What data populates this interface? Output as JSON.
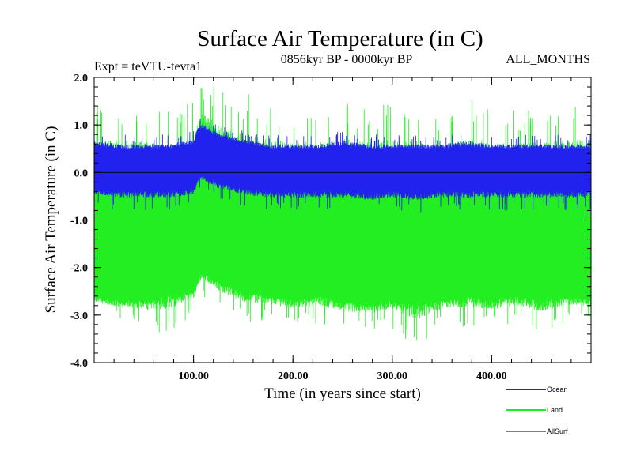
{
  "chart_data": {
    "type": "line",
    "title": "Surface Air Temperature (in C)",
    "subtitle_left": "Expt = teVTU-tevta1",
    "subtitle_center": "0856kyr BP - 0000kyr BP",
    "subtitle_right": "ALL_MONTHS",
    "xlabel": "Time (in years since start)",
    "ylabel": "Surface Air Temperature (in C)",
    "xlim": [
      0,
      500
    ],
    "ylim": [
      -4.0,
      2.0
    ],
    "x_ticks": [
      100,
      200,
      300,
      400
    ],
    "x_tick_labels": [
      "100.00",
      "200.00",
      "300.00",
      "400.00"
    ],
    "y_ticks": [
      2.0,
      1.0,
      0.0,
      -1.0,
      -2.0,
      -3.0,
      -4.0
    ],
    "y_tick_labels": [
      "2.0",
      "1.0",
      "0.0",
      "-1.0",
      "-2.0",
      "-3.0",
      "-4.0"
    ],
    "legend_position": "bottom-right outside",
    "series": [
      {
        "name": "Land",
        "color": "#22ee22",
        "x": [
          0,
          25,
          50,
          75,
          100,
          105,
          110,
          125,
          150,
          175,
          200,
          225,
          250,
          275,
          300,
          325,
          350,
          375,
          400,
          425,
          450,
          475,
          500
        ],
        "max": [
          1.4,
          1.5,
          1.4,
          1.3,
          1.5,
          1.7,
          2.0,
          1.8,
          1.7,
          1.5,
          1.4,
          1.4,
          1.6,
          1.3,
          1.5,
          1.4,
          1.3,
          1.6,
          1.4,
          1.3,
          1.5,
          1.4,
          1.7
        ],
        "high": [
          0.3,
          0.3,
          0.3,
          0.25,
          0.35,
          0.8,
          0.9,
          0.6,
          0.4,
          0.3,
          0.3,
          0.25,
          0.3,
          0.3,
          0.3,
          0.3,
          0.25,
          0.3,
          0.3,
          0.25,
          0.3,
          0.3,
          0.3
        ],
        "low": [
          -2.6,
          -2.7,
          -2.7,
          -2.6,
          -2.5,
          -2.2,
          -2.1,
          -2.3,
          -2.5,
          -2.6,
          -2.7,
          -2.6,
          -2.7,
          -2.8,
          -2.7,
          -2.8,
          -2.7,
          -2.6,
          -2.7,
          -2.6,
          -2.7,
          -2.6,
          -2.7
        ],
        "min": [
          -3.0,
          -3.1,
          -3.3,
          -3.5,
          -3.0,
          -2.6,
          -2.6,
          -2.9,
          -3.2,
          -3.1,
          -3.2,
          -3.2,
          -3.4,
          -3.3,
          -3.3,
          -3.7,
          -3.2,
          -3.3,
          -3.3,
          -3.2,
          -3.4,
          -3.2,
          -3.1
        ]
      },
      {
        "name": "Ocean",
        "color": "#2222ee",
        "x": [
          0,
          25,
          50,
          75,
          100,
          105,
          110,
          125,
          150,
          175,
          200,
          225,
          250,
          275,
          300,
          325,
          350,
          375,
          400,
          425,
          450,
          475,
          500
        ],
        "max": [
          0.9,
          0.8,
          0.8,
          0.8,
          0.9,
          1.2,
          1.2,
          1.0,
          0.9,
          0.8,
          0.8,
          0.8,
          0.9,
          0.8,
          0.8,
          0.8,
          0.8,
          0.9,
          0.8,
          0.8,
          0.8,
          0.8,
          0.8
        ],
        "high": [
          0.55,
          0.5,
          0.5,
          0.5,
          0.6,
          0.9,
          0.9,
          0.75,
          0.6,
          0.5,
          0.5,
          0.5,
          0.55,
          0.5,
          0.5,
          0.5,
          0.5,
          0.55,
          0.5,
          0.5,
          0.5,
          0.5,
          0.5
        ],
        "low": [
          -0.35,
          -0.4,
          -0.4,
          -0.4,
          -0.35,
          -0.1,
          -0.05,
          -0.2,
          -0.35,
          -0.4,
          -0.4,
          -0.4,
          -0.4,
          -0.45,
          -0.4,
          -0.45,
          -0.4,
          -0.4,
          -0.4,
          -0.4,
          -0.4,
          -0.4,
          -0.4
        ],
        "min": [
          -0.7,
          -0.8,
          -0.8,
          -0.8,
          -0.7,
          -0.4,
          -0.4,
          -0.6,
          -0.7,
          -0.8,
          -0.8,
          -0.8,
          -0.8,
          -0.85,
          -0.8,
          -0.85,
          -0.8,
          -0.8,
          -0.8,
          -0.8,
          -0.8,
          -0.8,
          -0.8
        ]
      },
      {
        "name": "AllSurf",
        "color": "#000000",
        "x": [
          0,
          500
        ],
        "values": [
          0.0,
          0.0
        ]
      }
    ]
  }
}
